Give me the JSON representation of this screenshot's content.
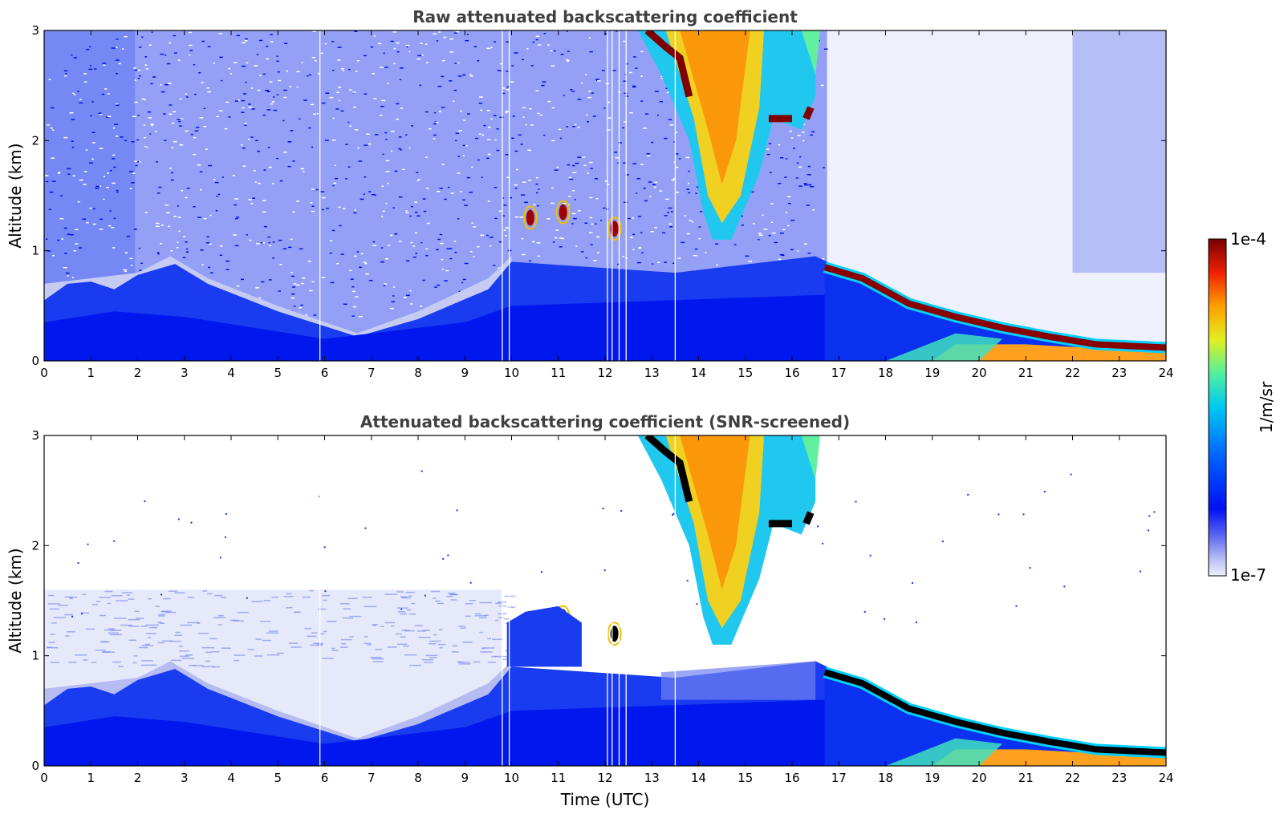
{
  "chart_data": [
    {
      "type": "heatmap",
      "title": "Raw attenuated backscattering coefficient",
      "xlabel": "",
      "ylabel": "Altitude (km)",
      "xlim": [
        0,
        24
      ],
      "ylim": [
        0,
        3
      ],
      "xticks": [
        "0",
        "1",
        "2",
        "3",
        "4",
        "5",
        "6",
        "7",
        "8",
        "9",
        "10",
        "11",
        "12",
        "13",
        "14",
        "15",
        "16",
        "17",
        "18",
        "19",
        "20",
        "21",
        "22",
        "23",
        "24"
      ],
      "yticks": [
        "0",
        "1",
        "2",
        "3"
      ],
      "screened": false,
      "features": {
        "boundary_layer_top_km": [
          [
            0,
            0.7
          ],
          [
            1,
            0.75
          ],
          [
            2,
            0.8
          ],
          [
            2.7,
            0.95
          ],
          [
            3.5,
            0.75
          ],
          [
            5,
            0.5
          ],
          [
            6.7,
            0.25
          ],
          [
            8,
            0.45
          ],
          [
            9.5,
            0.75
          ],
          [
            10,
            0.95
          ]
        ],
        "cloud_layer_km": [
          [
            16.7,
            0.85
          ],
          [
            17.5,
            0.75
          ],
          [
            18.5,
            0.52
          ],
          [
            19.5,
            0.4
          ],
          [
            20.5,
            0.3
          ],
          [
            21.5,
            0.22
          ],
          [
            22.5,
            0.15
          ],
          [
            24,
            0.12
          ]
        ],
        "high_cloud_time_utc": [
          13.5,
          16.5
        ],
        "high_cloud_altitude_km": [
          1.1,
          3.0
        ]
      }
    },
    {
      "type": "heatmap",
      "title": "Attenuated backscattering coefficient (SNR-screened)",
      "xlabel": "Time (UTC)",
      "ylabel": "Altitude (km)",
      "xlim": [
        0,
        24
      ],
      "ylim": [
        0,
        3
      ],
      "xticks": [
        "0",
        "1",
        "2",
        "3",
        "4",
        "5",
        "6",
        "7",
        "8",
        "9",
        "10",
        "11",
        "12",
        "13",
        "14",
        "15",
        "16",
        "17",
        "18",
        "19",
        "20",
        "21",
        "22",
        "23",
        "24"
      ],
      "yticks": [
        "0",
        "1",
        "2",
        "3"
      ],
      "screened": true
    }
  ],
  "colorbar": {
    "label": "1/m/sr",
    "max_label": "1e-4",
    "min_label": "1e-7",
    "range": [
      1e-07,
      0.0001
    ],
    "scale": "log",
    "colormap": "jet-with-light-low-end",
    "colors": [
      "#e8e8f8",
      "#b0b8f0",
      "#6070f0",
      "#0010f0",
      "#0050ff",
      "#00a8ff",
      "#00e8e0",
      "#80f080",
      "#f0f000",
      "#ffa000",
      "#ff3000",
      "#a00000",
      "#780000"
    ]
  }
}
